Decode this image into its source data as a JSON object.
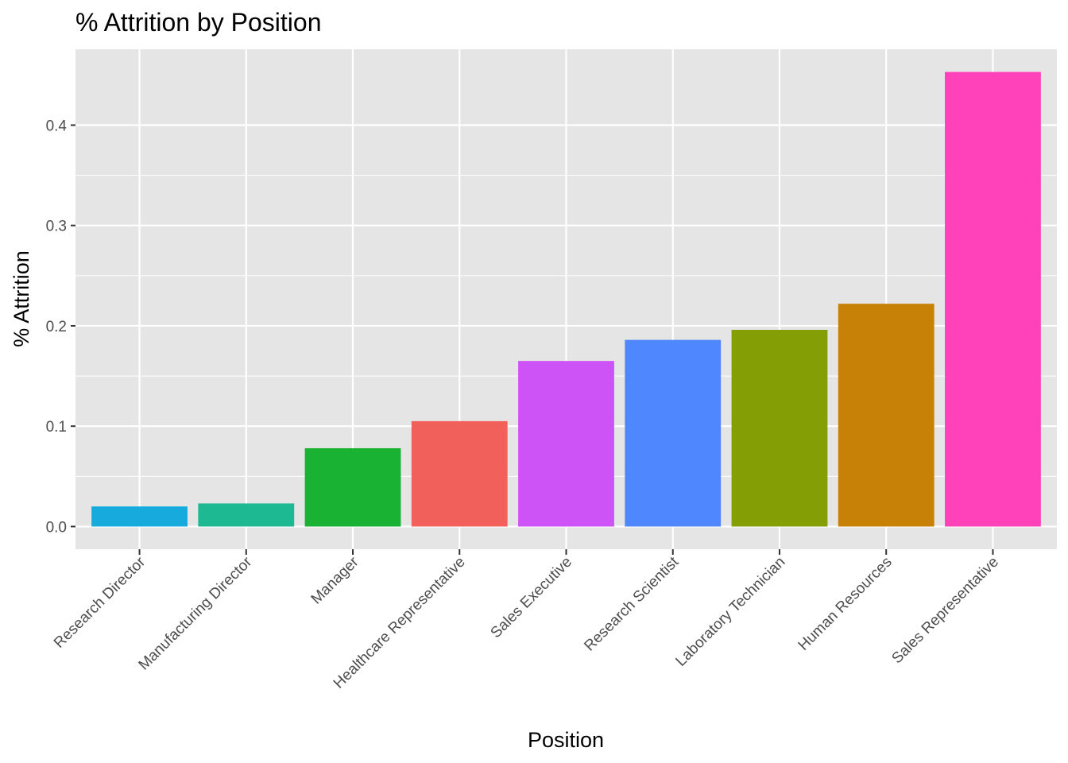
{
  "chart_data": {
    "type": "bar",
    "title": "% Attrition by Position",
    "xlabel": "Position",
    "ylabel": "% Attrition",
    "categories": [
      "Research Director",
      "Manufacturing Director",
      "Manager",
      "Healthcare Representative",
      "Sales Executive",
      "Research Scientist",
      "Laboratory Technician",
      "Human Resources",
      "Sales Representative"
    ],
    "values": [
      0.02,
      0.023,
      0.078,
      0.105,
      0.165,
      0.186,
      0.196,
      0.222,
      0.453
    ],
    "colors": [
      "#16ABDC",
      "#1CB992",
      "#1AB232",
      "#F2605B",
      "#CE53F7",
      "#4F88FE",
      "#849E06",
      "#C68106",
      "#FF42BA"
    ],
    "ylim": [
      -0.0226,
      0.4756
    ],
    "y_ticks": [
      0.0,
      0.1,
      0.2,
      0.3,
      0.4
    ],
    "y_tick_labels": [
      "0.0",
      "0.1",
      "0.2",
      "0.3",
      "0.4"
    ],
    "grid": true,
    "legend": "none",
    "panel_background": "#E5E5E5",
    "grid_color": "#FFFFFF"
  }
}
